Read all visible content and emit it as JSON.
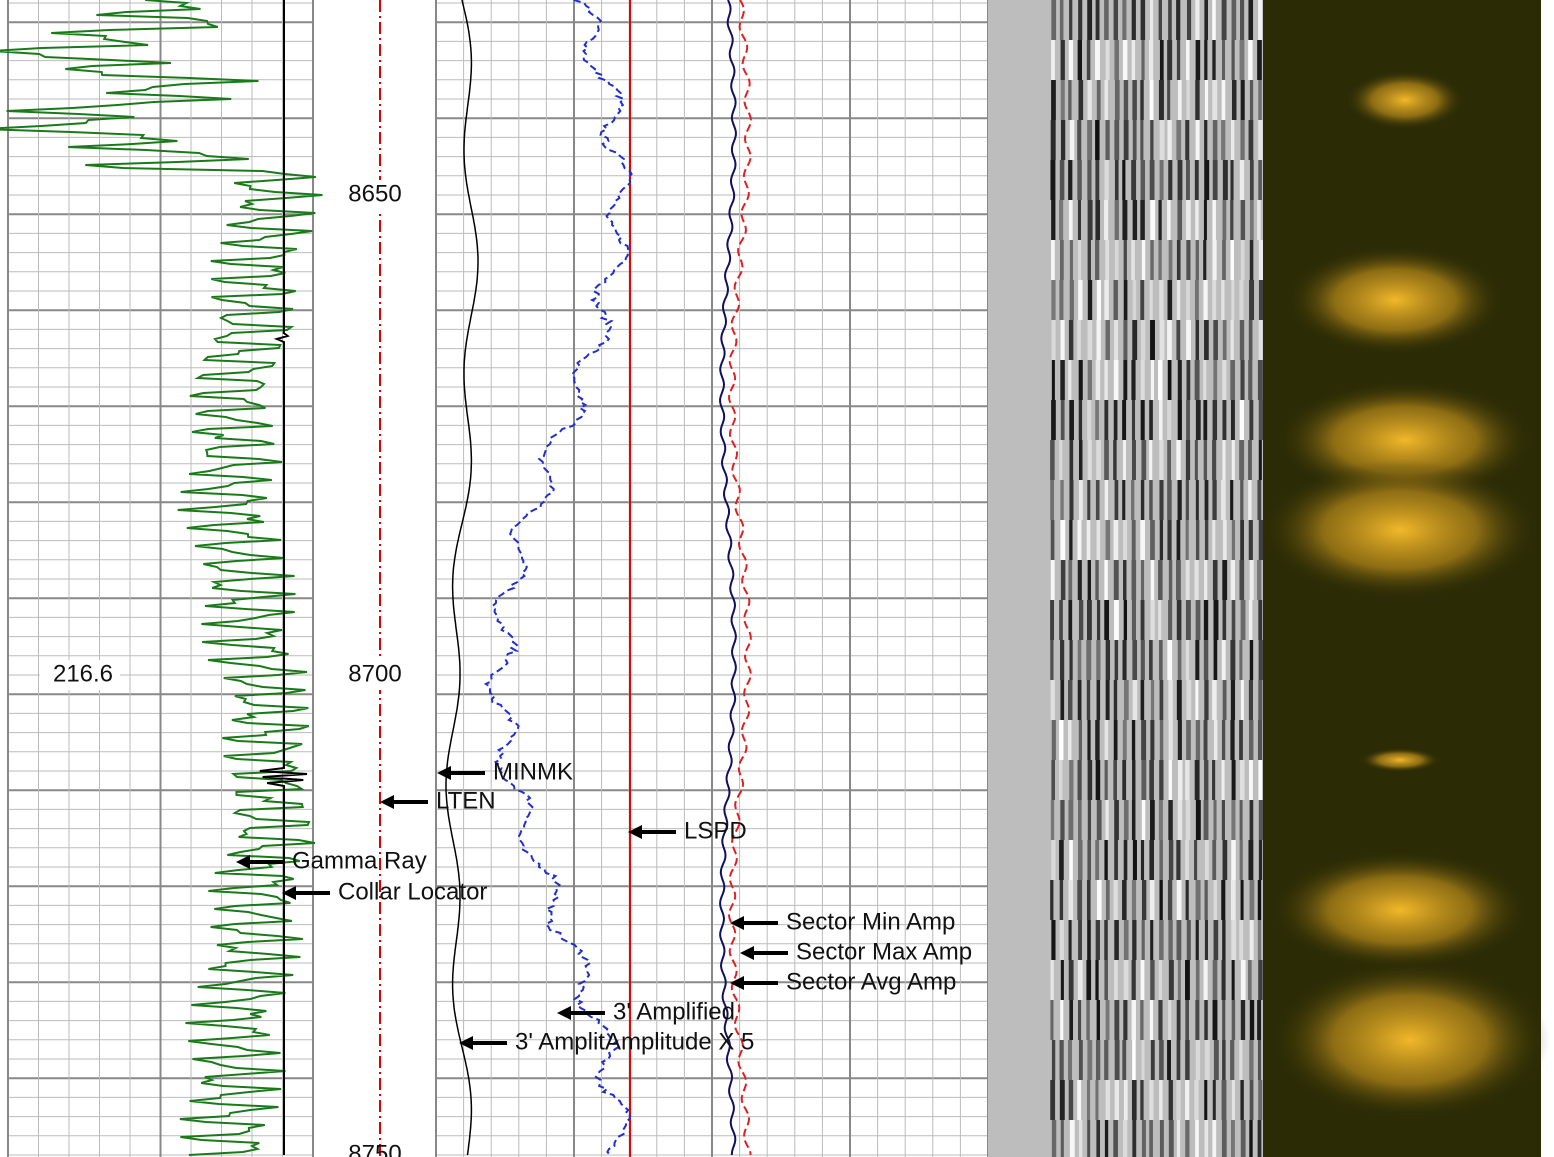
{
  "depth_labels": [
    "8650",
    "8700",
    "8750"
  ],
  "track_value": "216.6",
  "curve_labels": [
    "MINMK",
    "LTEN",
    "LSPD",
    "Gamma Ray",
    "Collar Locator",
    "Sector Min Amp",
    "Sector Max Amp",
    "Sector Avg Amp",
    "3' Amplified",
    "3' AmplitAmplitude X 5"
  ]
}
